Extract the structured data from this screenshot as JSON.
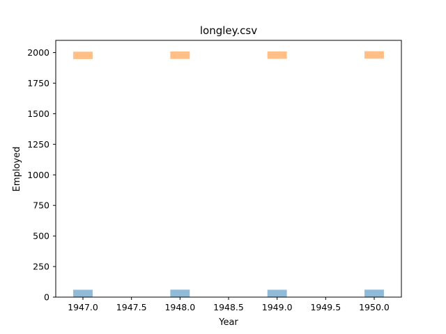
{
  "chart_data": {
    "type": "bar",
    "title": "longley.csv",
    "xlabel": "Year",
    "ylabel": "Employed",
    "xlim": [
      1946.72,
      1950.28
    ],
    "ylim": [
      0,
      2100
    ],
    "xticks": [
      1947.0,
      1947.5,
      1948.0,
      1948.5,
      1949.0,
      1949.5,
      1950.0
    ],
    "xtick_labels": [
      "1947.0",
      "1947.5",
      "1948.0",
      "1948.5",
      "1949.0",
      "1949.5",
      "1950.0"
    ],
    "yticks": [
      0,
      250,
      500,
      750,
      1000,
      1250,
      1500,
      1750,
      2000
    ],
    "ytick_labels": [
      "0",
      "250",
      "500",
      "750",
      "1000",
      "1250",
      "1500",
      "1750",
      "2000"
    ],
    "bar_width": 0.2,
    "grid": false,
    "series": [
      {
        "color": "#1f77b4",
        "opacity": 0.5,
        "bars": [
          {
            "x": 1947,
            "bottom": 0,
            "top": 60.3
          },
          {
            "x": 1948,
            "bottom": 0,
            "top": 61.1
          },
          {
            "x": 1949,
            "bottom": 0,
            "top": 60.2
          },
          {
            "x": 1950,
            "bottom": 0,
            "top": 61.2
          }
        ]
      },
      {
        "color": "#ff7f0e",
        "opacity": 0.5,
        "bars": [
          {
            "x": 1947,
            "bottom": 1947,
            "top": 2007.3
          },
          {
            "x": 1948,
            "bottom": 1948,
            "top": 2009.1
          },
          {
            "x": 1949,
            "bottom": 1949,
            "top": 2009.2
          },
          {
            "x": 1950,
            "bottom": 1950,
            "top": 2011.2
          }
        ]
      }
    ]
  }
}
